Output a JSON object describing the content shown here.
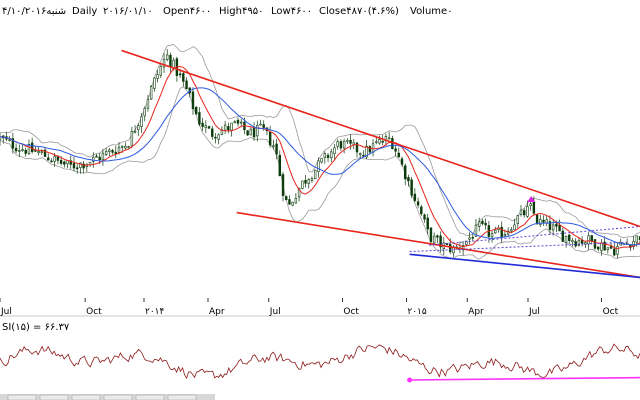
{
  "header": {
    "date_prefix": "۴/۱۰/۲۰۱۶شنبه",
    "interval": "Daily",
    "date": "۲۰۱۶/۰۱/۱۰",
    "open": "Open۴۶۰۰",
    "high": "High۴۹۵۰",
    "low": "Low۴۶۰۰",
    "close": "Close۴۸۷۰(۴.۶%)",
    "volume": "Volume۰"
  },
  "rsi_label": "SI(۱۵) = ۶۶.۳۷",
  "colors": {
    "candle": "#0b3b0b",
    "trendline": "#e8251c",
    "support_blue": "#1f2bd6",
    "ma_red": "#e8251c",
    "ma_blue": "#2c5be0",
    "band": "#9a9a9a",
    "dotted": "#5a3fd8",
    "rsi_line": "#8b1a1a",
    "rsi_support": "#ff33ff",
    "peak_marker": "#e020e0"
  },
  "chart_data": [
    {
      "type": "line",
      "subtype": "candlestick price chart with moving averages and trend channel",
      "x_ticks": [
        "Jul",
        "Oct",
        "۲۰۱۴",
        "Apr",
        "Jul",
        "Oct",
        "۲۰۱۵",
        "Apr",
        "Jul",
        "Oct"
      ],
      "close_path": [
        [
          0,
          4200
        ],
        [
          3,
          4100
        ],
        [
          6,
          4050
        ],
        [
          9,
          3950
        ],
        [
          11,
          3900
        ],
        [
          14,
          3950
        ],
        [
          17,
          4050
        ],
        [
          20,
          4150
        ],
        [
          22,
          4450
        ],
        [
          24,
          4800
        ],
        [
          26,
          5100
        ],
        [
          27,
          5000
        ],
        [
          29,
          4750
        ],
        [
          31,
          4400
        ],
        [
          33,
          4250
        ],
        [
          35,
          4300
        ],
        [
          37,
          4350
        ],
        [
          39,
          4250
        ],
        [
          41,
          4300
        ],
        [
          43,
          4100
        ],
        [
          44,
          3700
        ],
        [
          45,
          3450
        ],
        [
          47,
          3700
        ],
        [
          49,
          3850
        ],
        [
          51,
          4000
        ],
        [
          53,
          4150
        ],
        [
          55,
          4100
        ],
        [
          57,
          4050
        ],
        [
          59,
          4150
        ],
        [
          61,
          4200
        ],
        [
          62,
          4050
        ],
        [
          64,
          3700
        ],
        [
          66,
          3350
        ],
        [
          67,
          3150
        ],
        [
          69,
          3050
        ],
        [
          71,
          3000
        ],
        [
          73,
          3100
        ],
        [
          75,
          3250
        ],
        [
          77,
          3150
        ],
        [
          79,
          3200
        ],
        [
          81,
          3350
        ],
        [
          83,
          3450
        ],
        [
          84,
          3300
        ],
        [
          86,
          3250
        ],
        [
          88,
          3150
        ],
        [
          90,
          3100
        ],
        [
          92,
          3100
        ],
        [
          94,
          3050
        ],
        [
          96,
          3000
        ],
        [
          97,
          3050
        ],
        [
          99,
          3100
        ],
        [
          100,
          3150
        ]
      ],
      "resistance_line": [
        [
          19,
          5150
        ],
        [
          100,
          3250
        ]
      ],
      "support_line": [
        [
          37,
          3400
        ],
        [
          100,
          2700
        ]
      ],
      "support_blue": [
        [
          64,
          2950
        ],
        [
          100,
          2700
        ]
      ],
      "peak_marker": [
        83,
        3450
      ]
    },
    {
      "type": "line",
      "name": "RSI",
      "label": "SI(۱۵) = ۶۶.۳۷",
      "support_line": [
        [
          64,
          20
        ],
        [
          100,
          24
        ]
      ]
    }
  ]
}
